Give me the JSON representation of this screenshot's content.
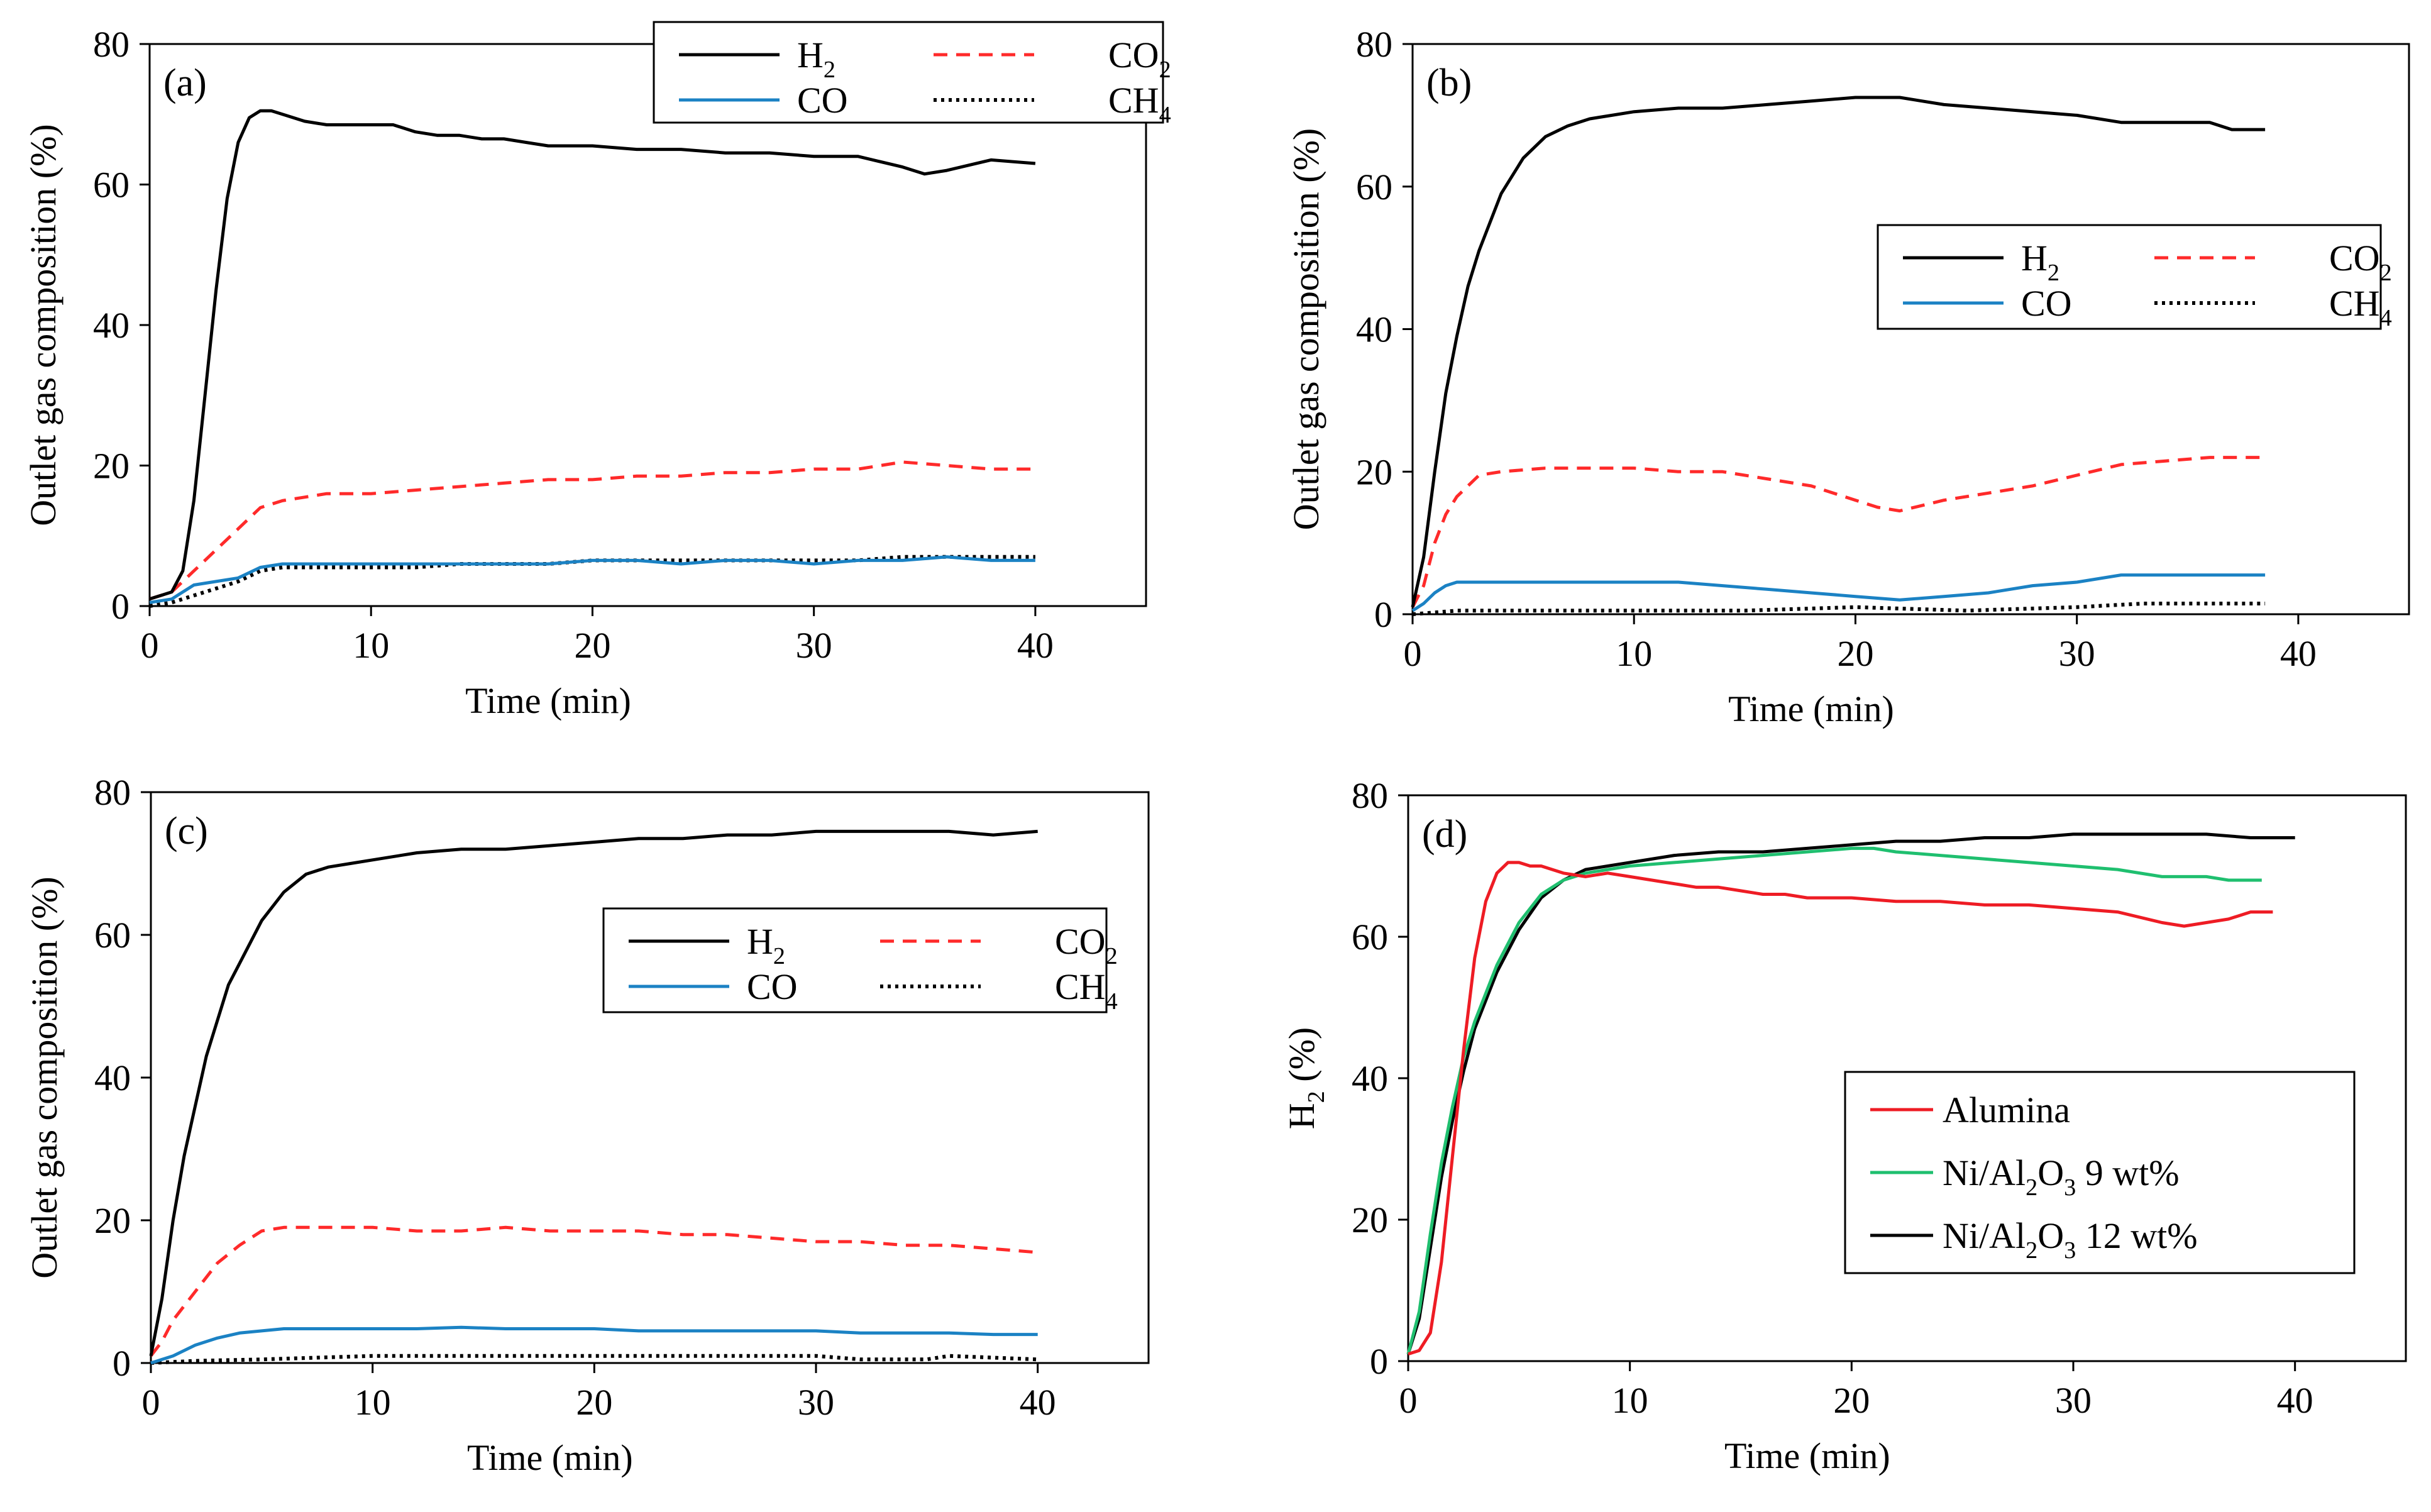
{
  "colors": {
    "h2": "#000000",
    "co": "#1b82c4",
    "co2": "#ff2a2a",
    "ch4": "#000000",
    "alumina": "#ee1c24",
    "ni9": "#1fbf6f",
    "ni12": "#000000",
    "axis": "#000000",
    "background": "#ffffff"
  },
  "chart_data": [
    {
      "type": "line",
      "panel_label": "(a)",
      "xlabel": "Time (min)",
      "ylabel": "Outlet gas composition (%)",
      "xlim": [
        0,
        45
      ],
      "ylim": [
        0,
        80
      ],
      "x_ticks": [
        0,
        10,
        20,
        30,
        40
      ],
      "y_ticks": [
        0,
        20,
        40,
        60,
        80
      ],
      "grid": false,
      "legend_placement": "top-right",
      "series": [
        {
          "name": "H",
          "sub": "2",
          "color_key": "h2",
          "dash": "solid",
          "x": [
            0,
            1,
            1.5,
            2,
            2.5,
            3,
            3.5,
            4,
            4.5,
            5,
            5.5,
            6,
            7,
            8,
            9,
            10,
            11,
            12,
            13,
            14,
            15,
            16,
            17,
            18,
            20,
            22,
            24,
            26,
            28,
            30,
            32,
            34,
            35,
            36,
            38,
            40
          ],
          "y": [
            1,
            2,
            5,
            15,
            30,
            45,
            58,
            66,
            69.5,
            70.5,
            70.5,
            70,
            69,
            68.5,
            68.5,
            68.5,
            68.5,
            67.5,
            67,
            67,
            66.5,
            66.5,
            66,
            65.5,
            65.5,
            65,
            65,
            64.5,
            64.5,
            64,
            64,
            62.5,
            61.5,
            62,
            63.5,
            63
          ]
        },
        {
          "name": "CO",
          "sub": "",
          "color_key": "co",
          "dash": "solid",
          "x": [
            0,
            1,
            1.5,
            2,
            3,
            4,
            5,
            6,
            7,
            8,
            10,
            12,
            14,
            16,
            18,
            20,
            22,
            24,
            26,
            28,
            30,
            32,
            34,
            36,
            38,
            40
          ],
          "y": [
            0.5,
            1,
            2,
            3,
            3.5,
            4,
            5.5,
            6,
            6,
            6,
            6,
            6,
            6,
            6,
            6,
            6.5,
            6.5,
            6,
            6.5,
            6.5,
            6,
            6.5,
            6.5,
            7,
            6.5,
            6.5
          ]
        },
        {
          "name": "CO",
          "sub": "2",
          "color_key": "co2",
          "dash": "dashed",
          "x": [
            0,
            1,
            2,
            3,
            4,
            5,
            6,
            7,
            8,
            10,
            12,
            14,
            16,
            18,
            20,
            22,
            24,
            26,
            28,
            30,
            32,
            34,
            36,
            38,
            40
          ],
          "y": [
            1,
            2,
            5,
            8,
            11,
            14,
            15,
            15.5,
            16,
            16,
            16.5,
            17,
            17.5,
            18,
            18,
            18.5,
            18.5,
            19,
            19,
            19.5,
            19.5,
            20.5,
            20,
            19.5,
            19.5
          ]
        },
        {
          "name": "CH",
          "sub": "4",
          "color_key": "ch4",
          "dash": "dotted",
          "x": [
            0,
            1,
            2,
            3,
            4,
            5,
            6,
            7,
            8,
            10,
            12,
            14,
            16,
            18,
            20,
            22,
            24,
            26,
            28,
            30,
            32,
            34,
            36,
            38,
            40
          ],
          "y": [
            0,
            0.5,
            1.5,
            2.5,
            3.5,
            5,
            5.5,
            5.5,
            5.5,
            5.5,
            5.5,
            6,
            6,
            6,
            6.5,
            6.5,
            6.5,
            6.5,
            6.5,
            6.5,
            6.5,
            7,
            7,
            7,
            7
          ]
        }
      ]
    },
    {
      "type": "line",
      "panel_label": "(b)",
      "xlabel": "Time (min)",
      "ylabel": "Outlet gas composition (%)",
      "xlim": [
        0,
        45
      ],
      "ylim": [
        0,
        80
      ],
      "x_ticks": [
        0,
        10,
        20,
        30,
        40
      ],
      "y_ticks": [
        0,
        20,
        40,
        60,
        80
      ],
      "grid": false,
      "legend_placement": "right",
      "series": [
        {
          "name": "H",
          "sub": "2",
          "color_key": "h2",
          "dash": "solid",
          "x": [
            0,
            0.5,
            1,
            1.5,
            2,
            2.5,
            3,
            4,
            5,
            6,
            7,
            8,
            9,
            10,
            12,
            14,
            16,
            18,
            20,
            21,
            22,
            24,
            26,
            28,
            30,
            32,
            34,
            36,
            37,
            38.5
          ],
          "y": [
            1,
            8,
            20,
            31,
            39,
            46,
            51,
            59,
            64,
            67,
            68.5,
            69.5,
            70,
            70.5,
            71,
            71,
            71.5,
            72,
            72.5,
            72.5,
            72.5,
            71.5,
            71,
            70.5,
            70,
            69,
            69,
            69,
            68,
            68
          ]
        },
        {
          "name": "CO",
          "sub": "",
          "color_key": "co",
          "dash": "solid",
          "x": [
            0,
            0.5,
            1,
            1.5,
            2,
            3,
            4,
            6,
            8,
            10,
            12,
            14,
            16,
            18,
            20,
            22,
            24,
            26,
            28,
            30,
            32,
            34,
            36,
            38.5
          ],
          "y": [
            0.5,
            1.5,
            3,
            4,
            4.5,
            4.5,
            4.5,
            4.5,
            4.5,
            4.5,
            4.5,
            4,
            3.5,
            3,
            2.5,
            2,
            2.5,
            3,
            4,
            4.5,
            5.5,
            5.5,
            5.5,
            5.5
          ]
        },
        {
          "name": "CO",
          "sub": "2",
          "color_key": "co2",
          "dash": "dashed",
          "x": [
            0,
            0.5,
            1,
            1.5,
            2,
            2.5,
            3,
            4,
            6,
            8,
            10,
            12,
            14,
            16,
            18,
            20,
            21,
            22,
            24,
            26,
            28,
            30,
            32,
            34,
            36,
            38.5
          ],
          "y": [
            1,
            4,
            10,
            14,
            16.5,
            18,
            19.5,
            20,
            20.5,
            20.5,
            20.5,
            20,
            20,
            19,
            18,
            16,
            15,
            14.5,
            16,
            17,
            18,
            19.5,
            21,
            21.5,
            22,
            22
          ]
        },
        {
          "name": "CH",
          "sub": "4",
          "color_key": "ch4",
          "dash": "dotted",
          "x": [
            0,
            2,
            5,
            10,
            15,
            20,
            25,
            30,
            33,
            35,
            38.5
          ],
          "y": [
            0,
            0.5,
            0.5,
            0.5,
            0.5,
            1,
            0.5,
            1,
            1.5,
            1.5,
            1.5
          ]
        }
      ]
    },
    {
      "type": "line",
      "panel_label": "(c)",
      "xlabel": "Time (min)",
      "ylabel": "Outlet gas composition (%)",
      "xlim": [
        0,
        45
      ],
      "ylim": [
        0,
        80
      ],
      "x_ticks": [
        0,
        10,
        20,
        30,
        40
      ],
      "y_ticks": [
        0,
        20,
        40,
        60,
        80
      ],
      "grid": false,
      "legend_placement": "right",
      "series": [
        {
          "name": "H",
          "sub": "2",
          "color_key": "h2",
          "dash": "solid",
          "x": [
            0,
            0.5,
            1,
            1.5,
            2,
            2.5,
            3,
            3.5,
            4,
            5,
            6,
            7,
            8,
            9,
            10,
            12,
            14,
            16,
            18,
            20,
            22,
            24,
            26,
            28,
            30,
            32,
            34,
            36,
            38,
            40
          ],
          "y": [
            1,
            9,
            20,
            29,
            36,
            43,
            48,
            53,
            56,
            62,
            66,
            68.5,
            69.5,
            70,
            70.5,
            71.5,
            72,
            72,
            72.5,
            73,
            73.5,
            73.5,
            74,
            74,
            74.5,
            74.5,
            74.5,
            74.5,
            74,
            74.5
          ]
        },
        {
          "name": "CO",
          "sub": "",
          "color_key": "co",
          "dash": "solid",
          "x": [
            0,
            1,
            2,
            3,
            4,
            5,
            6,
            8,
            10,
            12,
            14,
            16,
            18,
            20,
            22,
            24,
            26,
            28,
            30,
            32,
            34,
            36,
            38,
            40
          ],
          "y": [
            0,
            1,
            2.5,
            3.5,
            4.2,
            4.5,
            4.8,
            4.8,
            4.8,
            4.8,
            5,
            4.8,
            4.8,
            4.8,
            4.5,
            4.5,
            4.5,
            4.5,
            4.5,
            4.2,
            4.2,
            4.2,
            4,
            4
          ]
        },
        {
          "name": "CO",
          "sub": "2",
          "color_key": "co2",
          "dash": "dashed",
          "x": [
            0,
            0.5,
            1,
            2,
            3,
            4,
            5,
            6,
            8,
            10,
            12,
            14,
            16,
            18,
            20,
            22,
            24,
            26,
            28,
            30,
            32,
            34,
            36,
            38,
            40
          ],
          "y": [
            1,
            3,
            6,
            10,
            14,
            16.5,
            18.5,
            19,
            19,
            19,
            18.5,
            18.5,
            19,
            18.5,
            18.5,
            18.5,
            18,
            18,
            17.5,
            17,
            17,
            16.5,
            16.5,
            16,
            15.5
          ]
        },
        {
          "name": "CH",
          "sub": "4",
          "color_key": "ch4",
          "dash": "dotted",
          "x": [
            0,
            2,
            5,
            10,
            15,
            20,
            25,
            30,
            32,
            35,
            36,
            40
          ],
          "y": [
            0,
            0.3,
            0.5,
            1,
            1,
            1,
            1,
            1,
            0.5,
            0.5,
            1,
            0.5
          ]
        }
      ]
    },
    {
      "type": "line",
      "panel_label": "(d)",
      "xlabel": "Time (min)",
      "ylabel": "H",
      "ylabel_sub": "2",
      "ylabel_tail": " (%)",
      "xlim": [
        0,
        45
      ],
      "ylim": [
        0,
        80
      ],
      "x_ticks": [
        0,
        10,
        20,
        30,
        40
      ],
      "y_ticks": [
        0,
        20,
        40,
        60,
        80
      ],
      "grid": false,
      "legend_placement": "right",
      "series": [
        {
          "name": "Alumina",
          "sub": "",
          "tail": "",
          "color_key": "alumina",
          "dash": "solid",
          "x": [
            0,
            0.5,
            1,
            1.5,
            2,
            2.5,
            3,
            3.5,
            4,
            4.5,
            5,
            5.5,
            6,
            7,
            8,
            9,
            10,
            11,
            12,
            13,
            14,
            15,
            16,
            17,
            18,
            20,
            22,
            24,
            26,
            28,
            30,
            32,
            34,
            35,
            36,
            37,
            38,
            39
          ],
          "y": [
            1,
            1.5,
            4,
            14,
            29,
            44,
            57,
            65,
            69,
            70.5,
            70.5,
            70,
            70,
            69,
            68.5,
            69,
            68.5,
            68,
            67.5,
            67,
            67,
            66.5,
            66,
            66,
            65.5,
            65.5,
            65,
            65,
            64.5,
            64.5,
            64,
            63.5,
            62,
            61.5,
            62,
            62.5,
            63.5,
            63.5
          ]
        },
        {
          "name": "Ni/Al",
          "sub": "2",
          "mid": "O",
          "sub2": "3",
          "tail": " 9 wt%",
          "color_key": "ni9",
          "dash": "solid",
          "x": [
            0,
            0.5,
            1,
            1.5,
            2,
            2.5,
            3,
            4,
            5,
            6,
            7,
            8,
            9,
            10,
            12,
            14,
            16,
            18,
            20,
            21,
            22,
            24,
            26,
            28,
            30,
            32,
            34,
            36,
            37,
            38.5
          ],
          "y": [
            1,
            7,
            18,
            28,
            36,
            43,
            48,
            56,
            62,
            66,
            68,
            69,
            69.5,
            70,
            70.5,
            71,
            71.5,
            72,
            72.5,
            72.5,
            72,
            71.5,
            71,
            70.5,
            70,
            69.5,
            68.5,
            68.5,
            68,
            68
          ]
        },
        {
          "name": "Ni/Al",
          "sub": "2",
          "mid": "O",
          "sub2": "3",
          "tail": " 12 wt%",
          "color_key": "ni12",
          "dash": "solid",
          "x": [
            0,
            0.5,
            1,
            1.5,
            2,
            2.5,
            3,
            4,
            5,
            6,
            7,
            8,
            9,
            10,
            12,
            14,
            16,
            18,
            20,
            22,
            24,
            26,
            28,
            30,
            32,
            34,
            36,
            38,
            40
          ],
          "y": [
            1,
            6,
            16,
            26,
            34,
            41,
            47,
            55,
            61,
            65.5,
            68,
            69.5,
            70,
            70.5,
            71.5,
            72,
            72,
            72.5,
            73,
            73.5,
            73.5,
            74,
            74,
            74.5,
            74.5,
            74.5,
            74.5,
            74,
            74
          ]
        }
      ]
    }
  ]
}
